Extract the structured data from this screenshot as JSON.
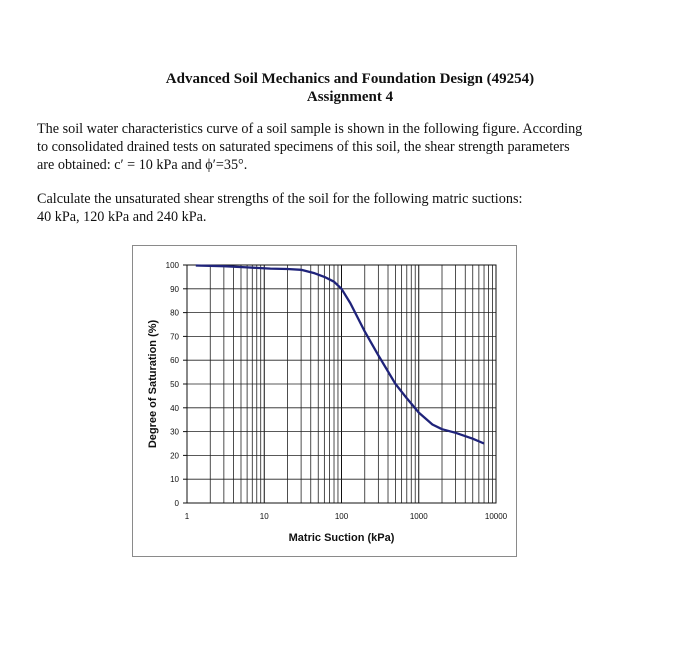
{
  "document": {
    "title_line1": "Advanced Soil Mechanics and Foundation Design (49254)",
    "title_line2": "Assignment 4",
    "paragraph1": [
      "The soil water characteristics curve of a soil sample is shown in the following figure. According",
      "to consolidated drained tests on saturated specimens of this soil, the shear strength parameters",
      "are obtained: c′ = 10 kPa and ϕ′=35°."
    ],
    "paragraph2": [
      "Calculate the unsaturated shear strengths of the soil for the following matric suctions:",
      "40 kPa, 120 kPa and 240 kPa."
    ]
  },
  "chart_data": {
    "type": "line",
    "xlabel": "Matric Suction (kPa)",
    "ylabel": "Degree of Saturation (%)",
    "x_scale": "log",
    "xlim": [
      1,
      10000
    ],
    "ylim": [
      0,
      100
    ],
    "x_ticks": [
      "1",
      "10",
      "100",
      "1000",
      "10000"
    ],
    "y_ticks": [
      "0",
      "10",
      "20",
      "30",
      "40",
      "50",
      "60",
      "70",
      "80",
      "90",
      "100"
    ],
    "grid": true,
    "line_color": "#1f237a",
    "series": [
      {
        "x": [
          1.3,
          3,
          6,
          12,
          20,
          30,
          45,
          60,
          80,
          100,
          130,
          200,
          300,
          500,
          700,
          1000,
          1500,
          2000,
          3000,
          5000,
          7000
        ],
        "y": [
          99.8,
          99.5,
          99,
          98.5,
          98.3,
          98,
          96.5,
          95,
          93,
          90,
          84,
          72,
          62,
          50,
          44,
          38,
          33,
          31,
          29.5,
          27,
          25
        ]
      }
    ]
  }
}
